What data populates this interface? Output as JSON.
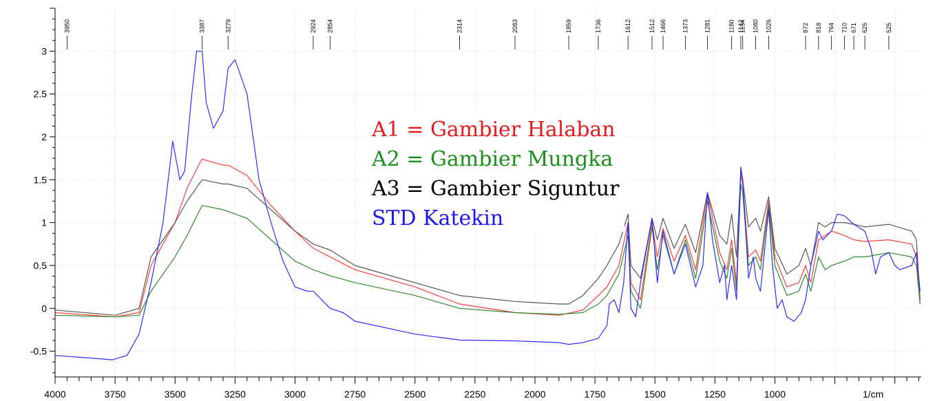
{
  "chart_data": {
    "type": "line",
    "title": "",
    "xlabel": "",
    "ylabel": "",
    "x_unit_label": "1/cm",
    "xlim": [
      4000,
      390
    ],
    "ylim": [
      -0.8,
      3.5
    ],
    "x_ticks": [
      4000,
      3750,
      3500,
      3250,
      3000,
      2750,
      2500,
      2250,
      2000,
      1750,
      1500,
      1250,
      1000
    ],
    "y_ticks": [
      -0.5,
      0,
      0.5,
      1,
      1.5,
      2,
      2.5,
      3
    ],
    "y_tick_labels": [
      "-0.5",
      "0",
      "0.5",
      "1",
      "1.5",
      "2",
      "2.5",
      "3"
    ],
    "grid": true,
    "legend_position": "center",
    "peak_labels": [
      "3950",
      "3387",
      "3279",
      "2924",
      "2854",
      "2314",
      "2083",
      "1859",
      "1736",
      "1612",
      "1512",
      "1466",
      "1373",
      "1281",
      "1180",
      "1142",
      "1134",
      "1080",
      "1026",
      "872",
      "818",
      "764",
      "710",
      "671",
      "625",
      "525"
    ],
    "series": [
      {
        "name": "A1 = Gambier Halaban",
        "color": "#ff3b3b",
        "points": [
          [
            4000,
            -0.05
          ],
          [
            3750,
            -0.1
          ],
          [
            3650,
            -0.05
          ],
          [
            3600,
            0.5
          ],
          [
            3500,
            1.0
          ],
          [
            3450,
            1.4
          ],
          [
            3400,
            1.68
          ],
          [
            3387,
            1.74
          ],
          [
            3300,
            1.67
          ],
          [
            3279,
            1.67
          ],
          [
            3200,
            1.55
          ],
          [
            3100,
            1.2
          ],
          [
            3000,
            0.9
          ],
          [
            2924,
            0.7
          ],
          [
            2854,
            0.6
          ],
          [
            2750,
            0.45
          ],
          [
            2500,
            0.25
          ],
          [
            2314,
            0.05
          ],
          [
            2083,
            -0.05
          ],
          [
            1900,
            -0.08
          ],
          [
            1800,
            -0.02
          ],
          [
            1736,
            0.15
          ],
          [
            1700,
            0.25
          ],
          [
            1650,
            0.5
          ],
          [
            1612,
            1.0
          ],
          [
            1600,
            0.3
          ],
          [
            1560,
            0.1
          ],
          [
            1512,
            1.0
          ],
          [
            1490,
            0.6
          ],
          [
            1466,
            0.93
          ],
          [
            1420,
            0.55
          ],
          [
            1373,
            0.85
          ],
          [
            1330,
            0.45
          ],
          [
            1281,
            1.35
          ],
          [
            1230,
            0.65
          ],
          [
            1200,
            0.45
          ],
          [
            1180,
            0.8
          ],
          [
            1160,
            0.3
          ],
          [
            1142,
            1.55
          ],
          [
            1134,
            1.45
          ],
          [
            1110,
            0.6
          ],
          [
            1080,
            0.68
          ],
          [
            1060,
            0.55
          ],
          [
            1026,
            1.25
          ],
          [
            1000,
            0.6
          ],
          [
            950,
            0.25
          ],
          [
            900,
            0.3
          ],
          [
            872,
            0.5
          ],
          [
            850,
            0.3
          ],
          [
            818,
            0.8
          ],
          [
            790,
            0.85
          ],
          [
            764,
            0.9
          ],
          [
            710,
            0.85
          ],
          [
            671,
            0.8
          ],
          [
            625,
            0.78
          ],
          [
            525,
            0.8
          ],
          [
            430,
            0.75
          ],
          [
            410,
            0.6
          ],
          [
            395,
            0.05
          ]
        ]
      },
      {
        "name": "A2 = Gambier Mungka",
        "color": "#2e8b2e",
        "points": [
          [
            4000,
            -0.08
          ],
          [
            3750,
            -0.1
          ],
          [
            3650,
            -0.08
          ],
          [
            3600,
            0.2
          ],
          [
            3500,
            0.6
          ],
          [
            3450,
            0.85
          ],
          [
            3387,
            1.2
          ],
          [
            3300,
            1.15
          ],
          [
            3279,
            1.13
          ],
          [
            3200,
            1.05
          ],
          [
            3100,
            0.8
          ],
          [
            3000,
            0.55
          ],
          [
            2924,
            0.45
          ],
          [
            2854,
            0.38
          ],
          [
            2750,
            0.3
          ],
          [
            2500,
            0.15
          ],
          [
            2314,
            0.0
          ],
          [
            2083,
            -0.05
          ],
          [
            1900,
            -0.07
          ],
          [
            1800,
            -0.05
          ],
          [
            1736,
            0.05
          ],
          [
            1700,
            0.15
          ],
          [
            1650,
            0.4
          ],
          [
            1612,
            0.85
          ],
          [
            1600,
            0.2
          ],
          [
            1560,
            0.0
          ],
          [
            1512,
            0.95
          ],
          [
            1490,
            0.45
          ],
          [
            1466,
            0.85
          ],
          [
            1420,
            0.4
          ],
          [
            1373,
            0.8
          ],
          [
            1330,
            0.35
          ],
          [
            1281,
            1.25
          ],
          [
            1230,
            0.55
          ],
          [
            1200,
            0.35
          ],
          [
            1180,
            0.7
          ],
          [
            1160,
            0.2
          ],
          [
            1142,
            1.45
          ],
          [
            1134,
            1.35
          ],
          [
            1110,
            0.5
          ],
          [
            1080,
            0.6
          ],
          [
            1060,
            0.45
          ],
          [
            1026,
            1.2
          ],
          [
            1000,
            0.5
          ],
          [
            950,
            0.15
          ],
          [
            900,
            0.2
          ],
          [
            872,
            0.4
          ],
          [
            850,
            0.2
          ],
          [
            818,
            0.6
          ],
          [
            790,
            0.45
          ],
          [
            764,
            0.5
          ],
          [
            710,
            0.55
          ],
          [
            671,
            0.6
          ],
          [
            625,
            0.6
          ],
          [
            525,
            0.65
          ],
          [
            430,
            0.6
          ],
          [
            410,
            0.5
          ],
          [
            395,
            0.05
          ]
        ]
      },
      {
        "name": "A3 = Gambier Siguntur",
        "color": "#555555",
        "points": [
          [
            4000,
            -0.02
          ],
          [
            3750,
            -0.08
          ],
          [
            3650,
            0.0
          ],
          [
            3600,
            0.6
          ],
          [
            3500,
            1.0
          ],
          [
            3450,
            1.25
          ],
          [
            3387,
            1.5
          ],
          [
            3300,
            1.45
          ],
          [
            3279,
            1.45
          ],
          [
            3200,
            1.4
          ],
          [
            3100,
            1.15
          ],
          [
            3000,
            0.9
          ],
          [
            2924,
            0.75
          ],
          [
            2854,
            0.68
          ],
          [
            2750,
            0.5
          ],
          [
            2500,
            0.3
          ],
          [
            2314,
            0.15
          ],
          [
            2083,
            0.08
          ],
          [
            1900,
            0.05
          ],
          [
            1859,
            0.05
          ],
          [
            1800,
            0.15
          ],
          [
            1736,
            0.35
          ],
          [
            1700,
            0.5
          ],
          [
            1650,
            0.75
          ],
          [
            1612,
            1.1
          ],
          [
            1600,
            0.5
          ],
          [
            1560,
            0.35
          ],
          [
            1512,
            1.05
          ],
          [
            1490,
            0.8
          ],
          [
            1466,
            1.05
          ],
          [
            1420,
            0.7
          ],
          [
            1373,
            0.98
          ],
          [
            1330,
            0.65
          ],
          [
            1281,
            1.35
          ],
          [
            1230,
            0.85
          ],
          [
            1200,
            0.75
          ],
          [
            1180,
            1.1
          ],
          [
            1160,
            0.6
          ],
          [
            1142,
            1.6
          ],
          [
            1134,
            1.5
          ],
          [
            1110,
            0.95
          ],
          [
            1080,
            1.05
          ],
          [
            1060,
            0.9
          ],
          [
            1026,
            1.3
          ],
          [
            1000,
            0.7
          ],
          [
            950,
            0.4
          ],
          [
            900,
            0.5
          ],
          [
            872,
            0.7
          ],
          [
            850,
            0.5
          ],
          [
            818,
            1.0
          ],
          [
            790,
            0.95
          ],
          [
            764,
            1.0
          ],
          [
            710,
            1.0
          ],
          [
            671,
            0.98
          ],
          [
            625,
            0.95
          ],
          [
            525,
            0.98
          ],
          [
            430,
            0.9
          ],
          [
            410,
            0.8
          ],
          [
            395,
            0.1
          ]
        ]
      },
      {
        "name": "STD Katekin",
        "color": "#2b2bff",
        "points": [
          [
            4000,
            -0.55
          ],
          [
            3850,
            -0.58
          ],
          [
            3760,
            -0.6
          ],
          [
            3700,
            -0.55
          ],
          [
            3650,
            -0.3
          ],
          [
            3600,
            0.3
          ],
          [
            3550,
            1.0
          ],
          [
            3520,
            1.7
          ],
          [
            3510,
            1.95
          ],
          [
            3480,
            1.5
          ],
          [
            3460,
            1.6
          ],
          [
            3430,
            2.5
          ],
          [
            3410,
            3.0
          ],
          [
            3387,
            3.0
          ],
          [
            3370,
            2.4
          ],
          [
            3340,
            2.1
          ],
          [
            3300,
            2.3
          ],
          [
            3279,
            2.8
          ],
          [
            3250,
            2.9
          ],
          [
            3200,
            2.5
          ],
          [
            3150,
            1.5
          ],
          [
            3100,
            1.0
          ],
          [
            3050,
            0.55
          ],
          [
            3000,
            0.25
          ],
          [
            2950,
            0.2
          ],
          [
            2924,
            0.2
          ],
          [
            2854,
            0.0
          ],
          [
            2800,
            -0.05
          ],
          [
            2750,
            -0.15
          ],
          [
            2500,
            -0.3
          ],
          [
            2314,
            -0.37
          ],
          [
            2083,
            -0.38
          ],
          [
            1900,
            -0.4
          ],
          [
            1859,
            -0.42
          ],
          [
            1800,
            -0.4
          ],
          [
            1736,
            -0.35
          ],
          [
            1700,
            -0.2
          ],
          [
            1690,
            0.05
          ],
          [
            1670,
            0.1
          ],
          [
            1650,
            -0.05
          ],
          [
            1630,
            0.3
          ],
          [
            1612,
            1.0
          ],
          [
            1600,
            0.0
          ],
          [
            1580,
            -0.1
          ],
          [
            1560,
            0.3
          ],
          [
            1512,
            1.05
          ],
          [
            1490,
            0.3
          ],
          [
            1466,
            0.9
          ],
          [
            1420,
            0.4
          ],
          [
            1373,
            0.75
          ],
          [
            1330,
            0.25
          ],
          [
            1300,
            0.5
          ],
          [
            1281,
            1.35
          ],
          [
            1260,
            0.8
          ],
          [
            1230,
            0.3
          ],
          [
            1210,
            0.5
          ],
          [
            1200,
            0.1
          ],
          [
            1180,
            0.5
          ],
          [
            1160,
            0.1
          ],
          [
            1142,
            1.65
          ],
          [
            1134,
            1.5
          ],
          [
            1110,
            0.35
          ],
          [
            1090,
            0.6
          ],
          [
            1080,
            0.35
          ],
          [
            1060,
            0.2
          ],
          [
            1026,
            1.15
          ],
          [
            1010,
            0.5
          ],
          [
            990,
            0.0
          ],
          [
            970,
            0.1
          ],
          [
            950,
            -0.1
          ],
          [
            920,
            -0.15
          ],
          [
            890,
            -0.05
          ],
          [
            872,
            0.1
          ],
          [
            850,
            0.5
          ],
          [
            818,
            0.9
          ],
          [
            800,
            0.8
          ],
          [
            764,
            0.9
          ],
          [
            740,
            1.1
          ],
          [
            710,
            1.08
          ],
          [
            671,
            0.98
          ],
          [
            625,
            0.9
          ],
          [
            600,
            0.7
          ],
          [
            580,
            0.4
          ],
          [
            560,
            0.6
          ],
          [
            525,
            0.65
          ],
          [
            500,
            0.5
          ],
          [
            480,
            0.45
          ],
          [
            430,
            0.5
          ],
          [
            410,
            0.65
          ],
          [
            395,
            0.2
          ]
        ]
      }
    ],
    "legend_entries": [
      {
        "label": "A1 = Gambier Halaban",
        "color": "#e41a1c"
      },
      {
        "label": "A2 = Gambier Mungka",
        "color": "#1a8f1a"
      },
      {
        "label": "A3 = Gambier Siguntur",
        "color": "#000000"
      },
      {
        "label": "STD Katekin",
        "color": "#1a1aee"
      }
    ]
  }
}
